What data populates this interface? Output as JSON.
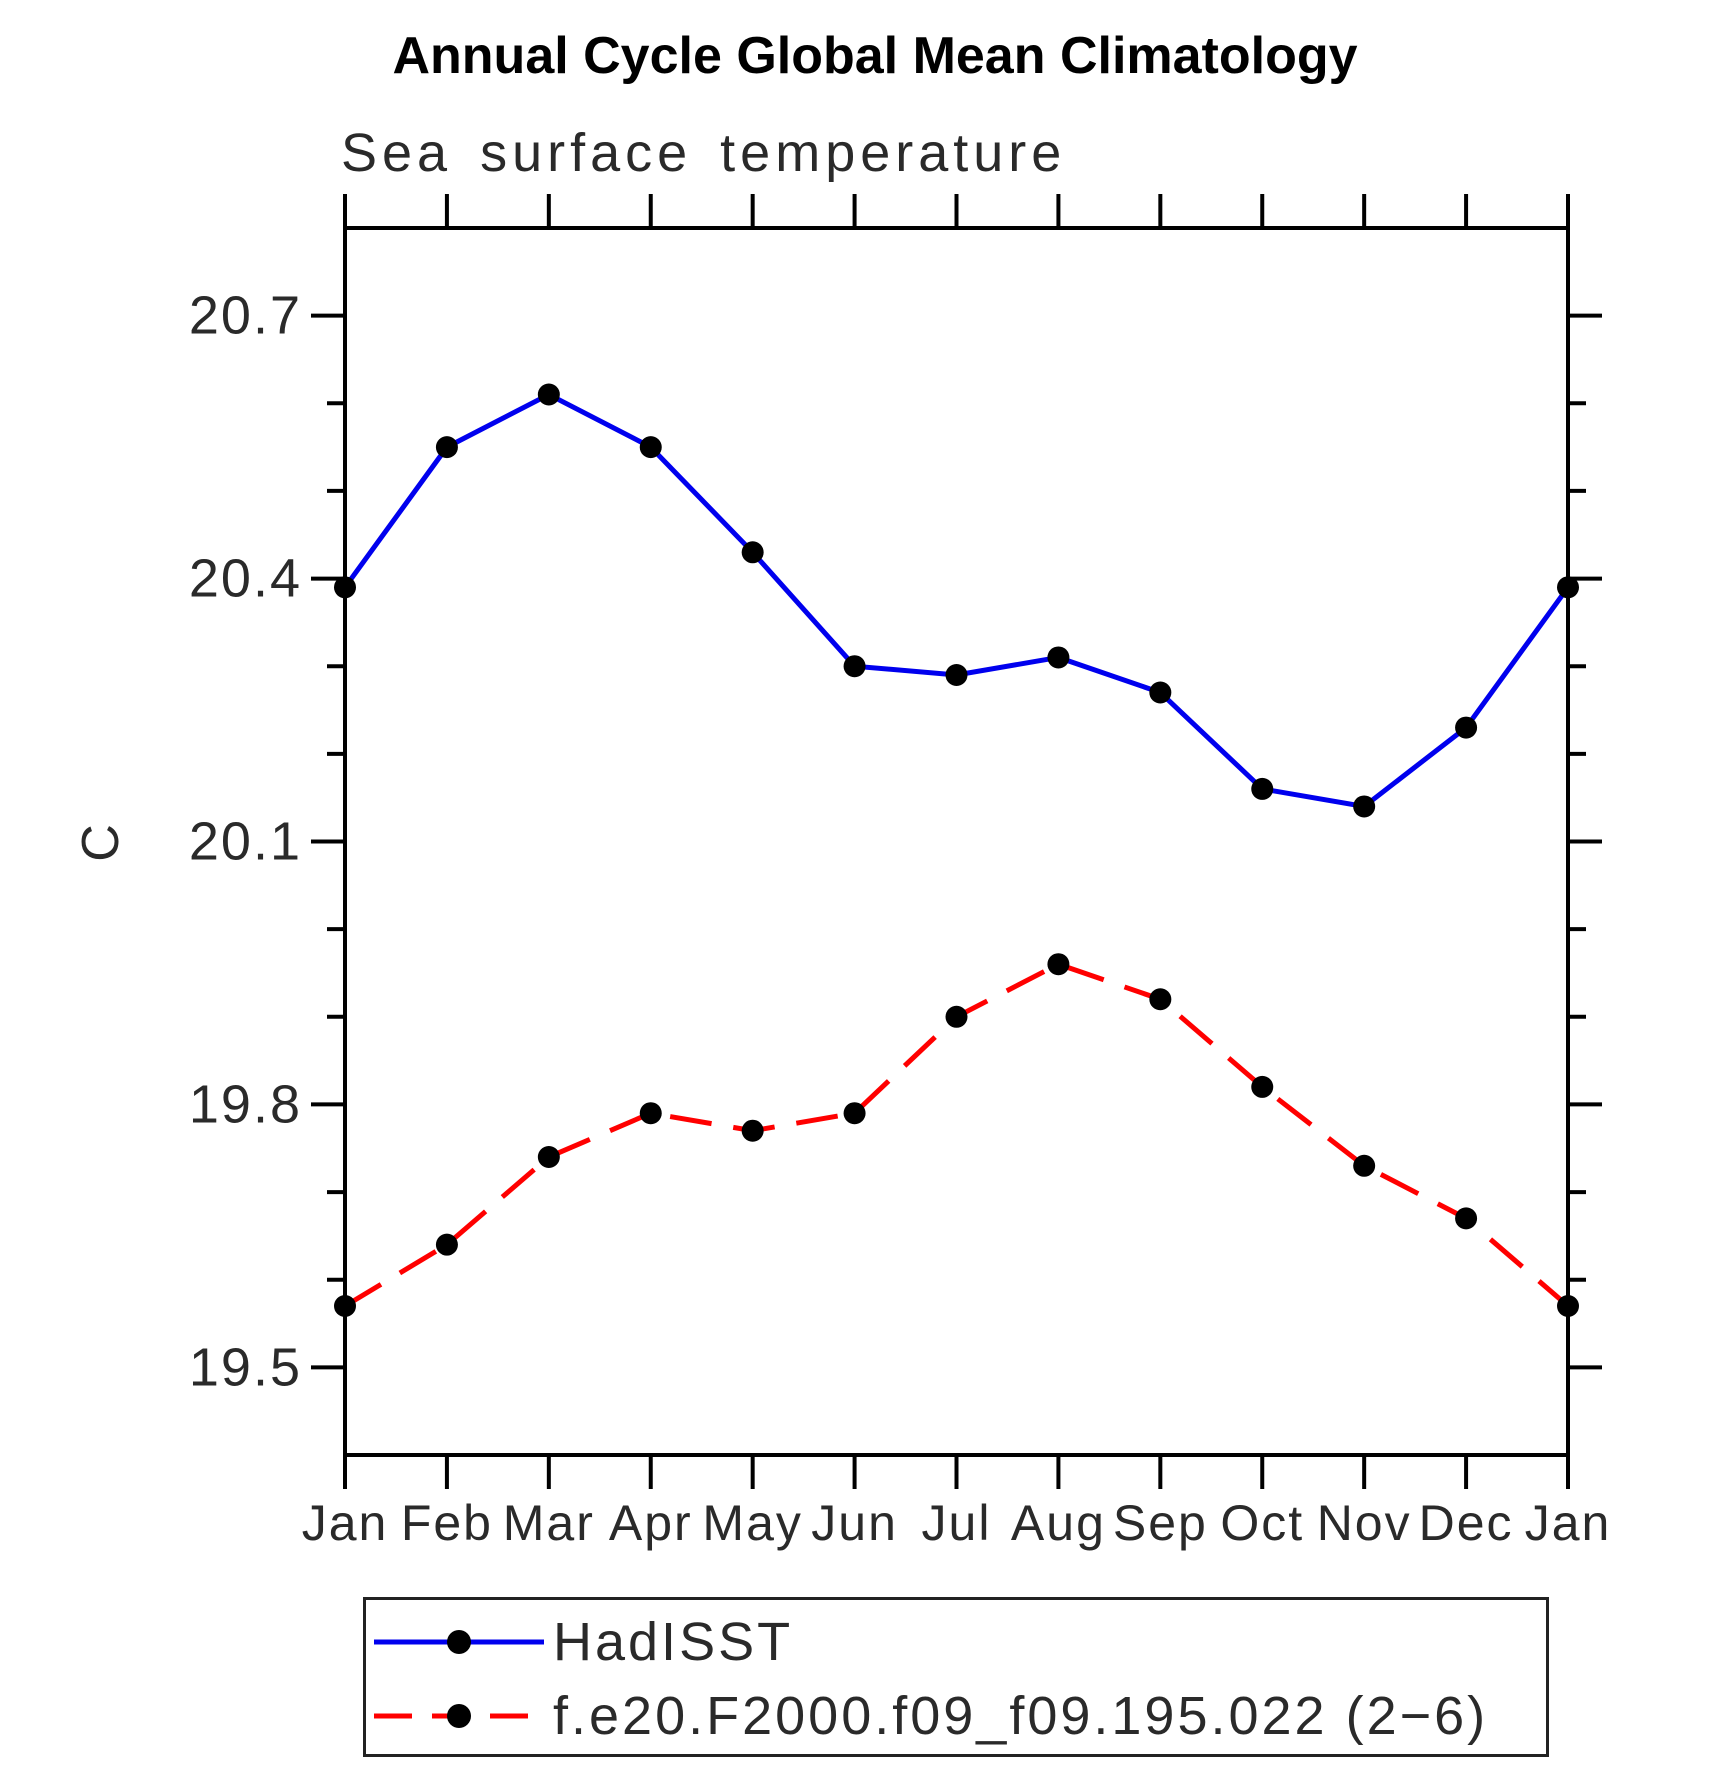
{
  "page": {
    "title": "Annual Cycle Global Mean Climatology",
    "subtitle": "Sea surface temperature"
  },
  "chart_data": {
    "type": "line",
    "title": "Annual Cycle Global Mean Climatology",
    "subtitle": "Sea surface temperature",
    "xlabel": "",
    "ylabel": "C",
    "x_categories": [
      "Jan",
      "Feb",
      "Mar",
      "Apr",
      "May",
      "Jun",
      "Jul",
      "Aug",
      "Sep",
      "Oct",
      "Nov",
      "Dec",
      "Jan"
    ],
    "y_axis": {
      "min": 19.4,
      "max": 20.8,
      "major_tick_values": [
        19.5,
        19.8,
        20.1,
        20.4,
        20.7
      ],
      "major_tick_labels": [
        "19.5",
        "19.8",
        "20.1",
        "20.4",
        "20.7"
      ],
      "minor_tick_step": 0.1,
      "grid": "off"
    },
    "series": [
      {
        "name": "HadISST",
        "color": "#0000ee",
        "line_style": "solid",
        "marker": "filled-black-circle",
        "values": [
          20.39,
          20.55,
          20.61,
          20.55,
          20.43,
          20.3,
          20.29,
          20.31,
          20.27,
          20.16,
          20.14,
          20.23,
          20.39
        ]
      },
      {
        "name": "f.e20.F2000.f09_f09.195.022 (2−6)",
        "color": "#ff0000",
        "line_style": "dashed",
        "marker": "filled-black-circle",
        "values": [
          19.57,
          19.64,
          19.74,
          19.79,
          19.77,
          19.79,
          19.9,
          19.96,
          19.92,
          19.82,
          19.73,
          19.67,
          19.57
        ]
      }
    ],
    "legend": {
      "position": "bottom",
      "entries": [
        "HadISST",
        "f.e20.F2000.f09_f09.195.022 (2−6)"
      ]
    },
    "marker_color": "#000000",
    "axis_color": "#000000"
  }
}
